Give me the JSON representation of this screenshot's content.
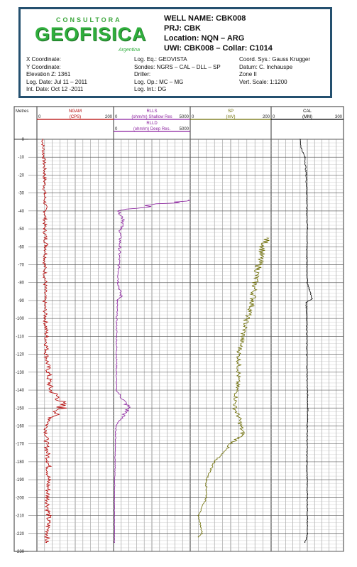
{
  "header": {
    "logo": {
      "top": "CONSULTORA",
      "main": "GEOFISICA",
      "sub": "Argentina"
    },
    "well_name": "WELL NAME:  CBK008",
    "prj": "PRJ: CBK",
    "location": "Location: NQN – ARG",
    "uwi": "UWI: CBK008 – Collar: C1014",
    "col1": [
      "X Coordinate:",
      "Y Coordinate:",
      "Elevation Z: 1361",
      "Log. Date: Jul 11 – 2011",
      "Int. Date: Oct 12 -2011"
    ],
    "col2": [
      "Log. Eq.: GEOVISTA",
      "Sondes: NGRS – CAL – DLL – SP",
      "Driller:",
      "Log. Op.: MC – MG",
      "Log. Int.: DG"
    ],
    "col3": [
      "Coord. Sys.: Gauss Krugger",
      "Datum: C. Inchauspe",
      "Zone II",
      "Vert. Scale: 1:1200"
    ]
  },
  "chart_data": {
    "type": "line",
    "depth_label": "Metres",
    "depth_range": [
      0,
      230
    ],
    "depth_ticks": [
      "0",
      "-10",
      "-20",
      "-30",
      "-40",
      "-50",
      "-60",
      "-70",
      "-80",
      "-90",
      "-100",
      "-110",
      "-120",
      "-130",
      "-140",
      "-150",
      "-160",
      "-170",
      "-180",
      "-190",
      "-200",
      "-210",
      "-220",
      "-230"
    ],
    "tracks": [
      {
        "name": "NGAM",
        "unit": "(CPS)",
        "min": "0",
        "max": "200",
        "color": "#b30000",
        "depth": [
          0,
          10,
          20,
          30,
          40,
          50,
          60,
          70,
          80,
          90,
          100,
          110,
          120,
          130,
          140,
          145,
          150,
          155,
          160,
          170,
          180,
          190,
          200,
          210,
          220,
          225
        ],
        "values": [
          15,
          18,
          20,
          20,
          22,
          20,
          25,
          20,
          22,
          20,
          22,
          25,
          25,
          30,
          35,
          60,
          65,
          40,
          25,
          25,
          30,
          30,
          28,
          30,
          28,
          25
        ]
      },
      {
        "name": "RLLS",
        "unit": "(ohm/m) Shallow Res",
        "min": "0",
        "max": "5000",
        "color": "#8a1f9e",
        "name2": "RLLD",
        "unit2": "(ohm/m) Deep Res.",
        "min2": "0",
        "max2": "5000",
        "depth": [
          34,
          40,
          45,
          50,
          60,
          70,
          80,
          88,
          90,
          100,
          120,
          140,
          150,
          160,
          180,
          200,
          220,
          225
        ],
        "values": [
          4900,
          300,
          700,
          450,
          400,
          350,
          300,
          500,
          250,
          200,
          200,
          180,
          1000,
          150,
          100,
          60,
          60,
          60
        ]
      },
      {
        "name": "SP",
        "unit": "(mV)",
        "min": "0",
        "max": "200",
        "color": "#6b6b00",
        "depth": [
          55,
          60,
          70,
          80,
          90,
          95,
          100,
          110,
          120,
          130,
          140,
          150,
          155,
          165,
          170,
          180,
          190,
          200,
          210,
          220,
          222
        ],
        "values": [
          190,
          180,
          170,
          160,
          155,
          150,
          140,
          130,
          120,
          120,
          115,
          110,
          120,
          130,
          100,
          60,
          40,
          40,
          20,
          30,
          20
        ]
      },
      {
        "name": "CAL",
        "unit": "(MM)",
        "min": "0",
        "max": "300",
        "color": "#000000",
        "depth": [
          0,
          5,
          10,
          20,
          30,
          40,
          50,
          60,
          70,
          80,
          89,
          91,
          100,
          120,
          140,
          150,
          160,
          180,
          200,
          220,
          225
        ],
        "values": [
          120,
          125,
          140,
          145,
          148,
          148,
          150,
          148,
          148,
          150,
          170,
          145,
          148,
          148,
          150,
          152,
          150,
          148,
          150,
          150,
          140
        ]
      }
    ]
  }
}
